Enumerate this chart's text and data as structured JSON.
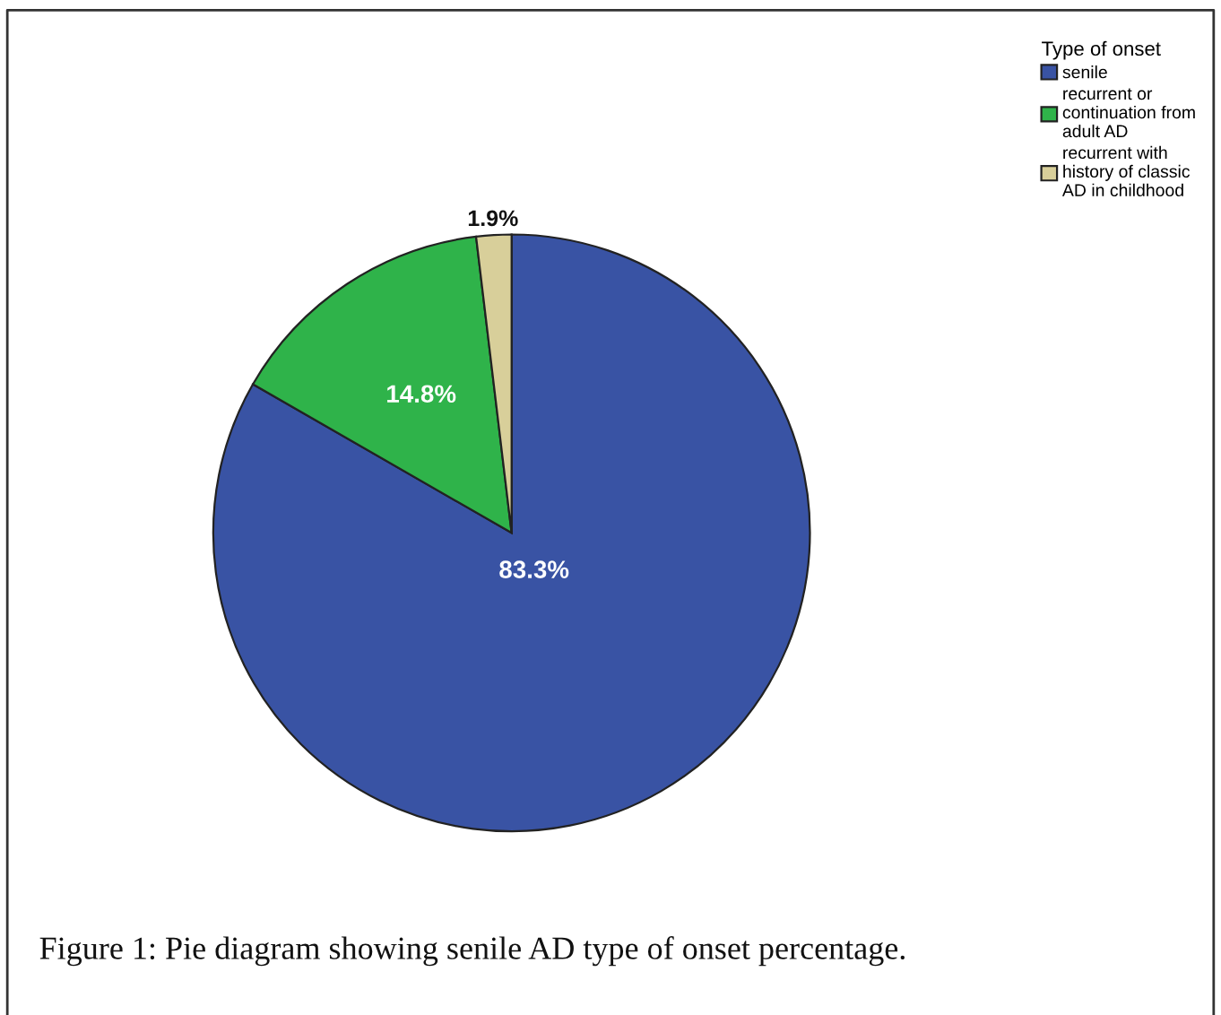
{
  "chart_data": {
    "type": "pie",
    "categories": [
      "senile",
      "recurrent or\ncontinuation from\nadult AD",
      "recurrent with\nhistory of classic\nAD in childhood"
    ],
    "values": [
      83.3,
      14.8,
      1.9
    ],
    "colors": [
      "#3953a4",
      "#2fb34a",
      "#d8cf9a"
    ],
    "value_labels": [
      "83.3%",
      "14.8%",
      "1.9%"
    ],
    "legend_title": "Type of onset",
    "legend": "top right",
    "annotations": [
      "Figure 1: Pie diagram showing senile AD type of onset percentage."
    ]
  }
}
